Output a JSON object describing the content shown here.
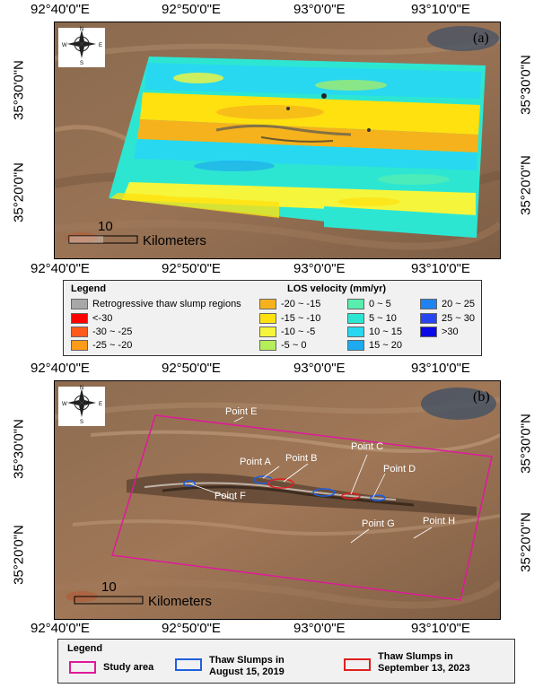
{
  "panel_a": {
    "label": "(a)",
    "top_coords": [
      "92°40'0\"E",
      "92°50'0\"E",
      "93°0'0\"E",
      "93°10'0\"E"
    ],
    "bottom_coords": [
      "92°40'0\"E",
      "92°50'0\"E",
      "93°0'0\"E",
      "93°10'0\"E"
    ],
    "left_coords": [
      "35°30'0\"N",
      "35°20'0\"N"
    ],
    "right_coords": [
      "35°30'0\"N",
      "35°20'0\"N"
    ],
    "scale_value": "10",
    "scale_unit": "Kilometers",
    "compass": {
      "n": "N",
      "s": "S",
      "e": "E",
      "w": "W"
    }
  },
  "legend_a": {
    "title": "Legend",
    "slump_label": "Retrogressive thaw slump regions",
    "velocity_title": "LOS velocity (mm/yr)",
    "classes": [
      {
        "label": "<-30",
        "color": "#ff0000"
      },
      {
        "label": "-30 ~ -25",
        "color": "#ff5a1e"
      },
      {
        "label": "-25 ~ -20",
        "color": "#ff9a1a"
      },
      {
        "label": "-20 ~ -15",
        "color": "#f5b21c"
      },
      {
        "label": "-15 ~ -10",
        "color": "#ffe10f"
      },
      {
        "label": "-10 ~ -5",
        "color": "#f5f53c"
      },
      {
        "label": "-5 ~ 0",
        "color": "#b4ee5a"
      },
      {
        "label": "0 ~ 5",
        "color": "#58eeae"
      },
      {
        "label": "5 ~ 10",
        "color": "#2de6d2"
      },
      {
        "label": "10 ~ 15",
        "color": "#28d8f0"
      },
      {
        "label": "15 ~ 20",
        "color": "#1eaaf0"
      },
      {
        "label": "20 ~ 25",
        "color": "#1e82f0"
      },
      {
        "label": "25 ~ 30",
        "color": "#2846f0"
      },
      {
        "label": ">30",
        "color": "#0a0ae6"
      }
    ],
    "slump_color": "#a8a8a8"
  },
  "panel_b": {
    "label": "(b)",
    "top_coords": [
      "92°40'0\"E",
      "92°50'0\"E",
      "93°0'0\"E",
      "93°10'0\"E"
    ],
    "bottom_coords": [
      "92°40'0\"E",
      "92°50'0\"E",
      "93°0'0\"E",
      "93°10'0\"E"
    ],
    "left_coords": [
      "35°30'0\"N",
      "35°20'0\"N"
    ],
    "right_coords": [
      "35°30'0\"N",
      "35°20'0\"N"
    ],
    "scale_value": "10",
    "scale_unit": "Kilometers",
    "points": [
      "Point E",
      "Point A",
      "Point B",
      "Point C",
      "Point D",
      "Point F",
      "Point G",
      "Point H"
    ],
    "compass": {
      "n": "N",
      "s": "S",
      "e": "E",
      "w": "W"
    }
  },
  "legend_b": {
    "title": "Legend",
    "study_area": "Study area",
    "slumps_2019": "Thaw Slumps in\nAugust 15, 2019",
    "slumps_2023": "Thaw Slumps in\nSeptember 13, 2023",
    "study_color": "#e0199a",
    "color_2019": "#1f5fe0",
    "color_2023": "#e01f1f"
  }
}
